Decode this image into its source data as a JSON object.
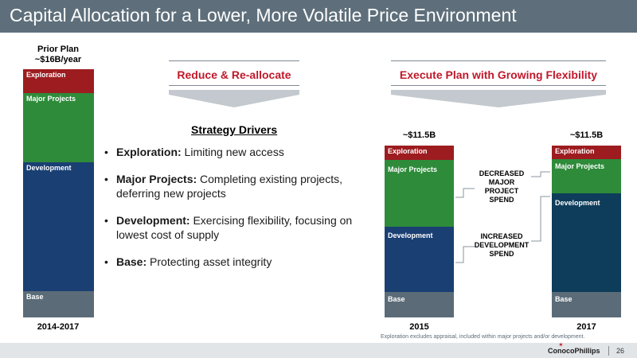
{
  "header": {
    "title": "Capital Allocation for a Lower, More Volatile Price Environment"
  },
  "prior_plan": {
    "caption_line1": "Prior Plan",
    "caption_line2": "~$16B/year",
    "year": "2014-2017",
    "segments": {
      "exploration": "Exploration",
      "major": "Major Projects",
      "development": "Development",
      "base": "Base"
    }
  },
  "section_left": {
    "title": "Reduce & Re-allocate"
  },
  "section_right": {
    "title": "Execute Plan with Growing Flexibility"
  },
  "drivers": {
    "title": "Strategy Drivers",
    "items": [
      {
        "label": "Exploration:",
        "text": " Limiting new access"
      },
      {
        "label": "Major Projects:",
        "text": " Completing existing projects, deferring new projects"
      },
      {
        "label": "Development:",
        "text": " Exercising flexibility, focusing on lowest cost of supply"
      },
      {
        "label": "Base:",
        "text": " Protecting asset integrity"
      }
    ]
  },
  "bar_2015": {
    "value": "~$11.5B",
    "year": "2015",
    "segments": {
      "exploration": "Exploration",
      "major": "Major Projects",
      "development": "Development",
      "base": "Base"
    }
  },
  "bar_2017": {
    "value": "~$11.5B",
    "year": "2017",
    "segments": {
      "exploration": "Exploration",
      "major": "Major Projects",
      "development": "Development",
      "base": "Base"
    }
  },
  "annotations": {
    "decreased_l1": "DECREASED",
    "decreased_l2": "MAJOR",
    "decreased_l3": "PROJECT",
    "decreased_l4": "SPEND",
    "increased_l1": "INCREASED",
    "increased_l2": "DEVELOPMENT",
    "increased_l3": "SPEND"
  },
  "footer": {
    "footnote": "Exploration excludes appraisal, included within major projects and/or development.",
    "logo": "ConocoPhillips",
    "page": "26"
  }
}
